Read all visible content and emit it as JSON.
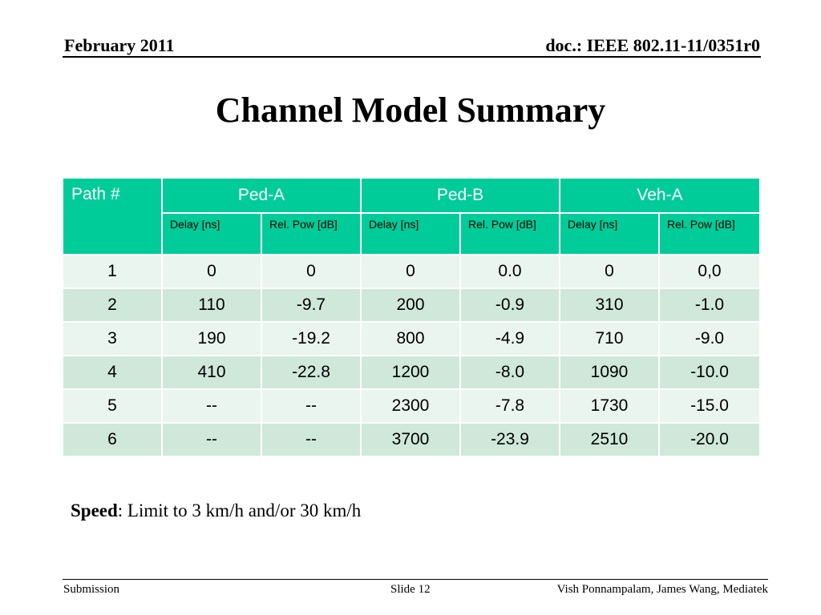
{
  "header": {
    "date": "February 2011",
    "doc": "doc.: IEEE 802.11-11/0351r0"
  },
  "title": "Channel Model Summary",
  "table": {
    "path_header": "Path #",
    "groups": [
      "Ped-A",
      "Ped-B",
      "Veh-A"
    ],
    "subheaders": [
      "Delay [ns]",
      "Rel. Pow [dB]",
      "Delay [ns]",
      "Rel. Pow [dB]",
      "Delay [ns]",
      "Rel. Pow [dB]"
    ],
    "rows": [
      [
        "1",
        "0",
        "0",
        "0",
        "0.0",
        "0",
        "0,0"
      ],
      [
        "2",
        "110",
        "-9.7",
        "200",
        "-0.9",
        "310",
        "-1.0"
      ],
      [
        "3",
        "190",
        "-19.2",
        "800",
        "-4.9",
        "710",
        "-9.0"
      ],
      [
        "4",
        "410",
        "-22.8",
        "1200",
        "-8.0",
        "1090",
        "-10.0"
      ],
      [
        "5",
        "--",
        "--",
        "2300",
        "-7.8",
        "1730",
        "-15.0"
      ],
      [
        "6",
        "--",
        "--",
        "3700",
        "-23.9",
        "2510",
        "-20.0"
      ]
    ]
  },
  "speed": {
    "label": "Speed",
    "text": ": Limit to 3 km/h and/or 30 km/h"
  },
  "footer": {
    "left": "Submission",
    "middle": "Slide 12",
    "right": "Vish Ponnampalam, James Wang, Mediatek"
  }
}
